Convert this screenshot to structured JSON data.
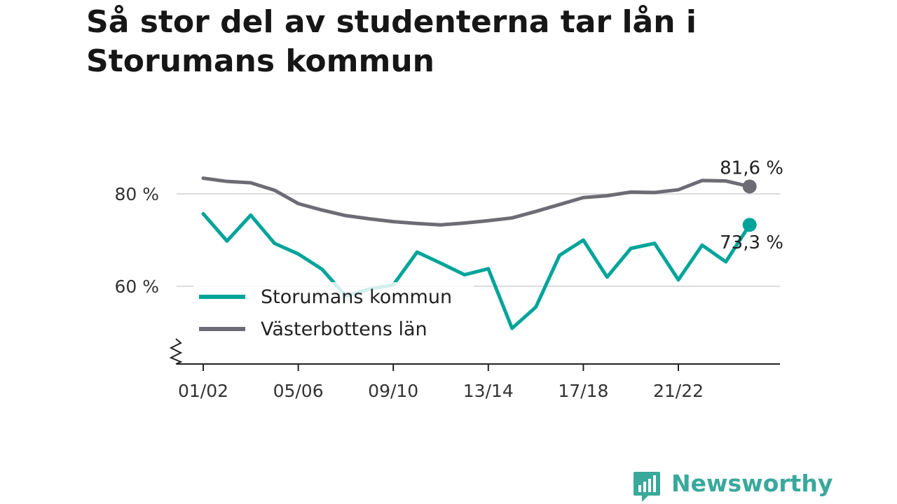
{
  "title": "Så stor del av studenterna tar lån i Storumans kommun",
  "chart_data": {
    "type": "line",
    "title": "Så stor del av studenterna tar lån i Storumans kommun",
    "xlabel": "",
    "ylabel": "",
    "ylim": [
      43,
      88
    ],
    "y_ticks": [
      60,
      80
    ],
    "y_tick_labels": [
      "60 %",
      "80 %"
    ],
    "grid": true,
    "legend_position": "bottom-left inside plot",
    "categories": [
      "01/02",
      "02/03",
      "03/04",
      "04/05",
      "05/06",
      "06/07",
      "07/08",
      "08/09",
      "09/10",
      "10/11",
      "11/12",
      "12/13",
      "13/14",
      "14/15",
      "15/16",
      "16/17",
      "17/18",
      "18/19",
      "19/20",
      "20/21",
      "21/22",
      "22/23",
      "23/24",
      "24/25"
    ],
    "x_tick_labels": [
      "01/02",
      "05/06",
      "09/10",
      "13/14",
      "17/18",
      "21/22"
    ],
    "series": [
      {
        "name": "Storumans kommun",
        "color": "#00a49a",
        "values": [
          75.7,
          69.8,
          75.4,
          69.3,
          67.0,
          63.7,
          57.9,
          59.4,
          60.3,
          67.4,
          65.0,
          62.5,
          63.8,
          50.9,
          55.5,
          66.7,
          70.0,
          62.0,
          68.2,
          69.3,
          61.4,
          68.9,
          65.3,
          73.3
        ],
        "end_label": "73,3 %"
      },
      {
        "name": "Västerbottens län",
        "color": "#6d6b73",
        "values": [
          83.4,
          82.7,
          82.4,
          80.8,
          77.9,
          76.5,
          75.3,
          74.6,
          74.0,
          73.6,
          73.3,
          73.7,
          74.2,
          74.8,
          76.2,
          77.7,
          79.2,
          79.6,
          80.4,
          80.3,
          80.9,
          82.9,
          82.8,
          81.6
        ],
        "end_label": "81,6 %"
      }
    ]
  },
  "legend": {
    "items": [
      {
        "label": "Storumans kommun",
        "color": "#00a49a"
      },
      {
        "label": "Västerbottens län",
        "color": "#6d6b73"
      }
    ]
  },
  "branding": {
    "name": "Newsworthy",
    "color": "#39a99c",
    "icon": "bar-chart-speech-bubble-icon"
  }
}
